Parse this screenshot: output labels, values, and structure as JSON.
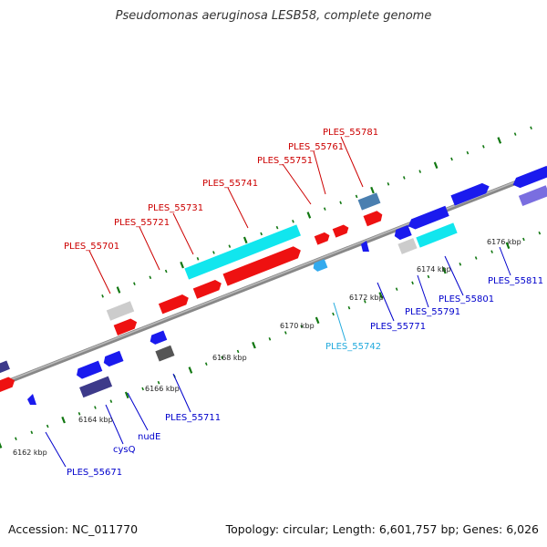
{
  "title": "Pseudomonas aeruginosa LESB58, complete genome",
  "footer": {
    "accession": "Accession: NC_011770",
    "summary": "Topology: circular; Length: 6,601,757 bp; Genes: 6,026"
  },
  "colors": {
    "backbone": "#8a8a8a",
    "plus_gene": "#ee1111",
    "minus_gene": "#1a1aee",
    "plus_label": "#cc0000",
    "minus_label": "#0000cc",
    "cyan_label": "#22aadd",
    "tick_dot": "#117711"
  },
  "ticks": [
    "6162 kbp",
    "6164 kbp",
    "6166 kbp",
    "6168 kbp",
    "6170 kbp",
    "6172 kbp",
    "6174 kbp",
    "6176 kbp"
  ],
  "labels": [
    {
      "text": "PLES_55781",
      "color": "#cc0000"
    },
    {
      "text": "PLES_55761",
      "color": "#cc0000"
    },
    {
      "text": "PLES_55751",
      "color": "#cc0000"
    },
    {
      "text": "PLES_55741",
      "color": "#cc0000"
    },
    {
      "text": "PLES_55731",
      "color": "#cc0000"
    },
    {
      "text": "PLES_55721",
      "color": "#cc0000"
    },
    {
      "text": "PLES_55701",
      "color": "#cc0000"
    },
    {
      "text": "PLES_55811",
      "color": "#0000cc"
    },
    {
      "text": "PLES_55801",
      "color": "#0000cc"
    },
    {
      "text": "PLES_55791",
      "color": "#0000cc"
    },
    {
      "text": "PLES_55771",
      "color": "#0000cc"
    },
    {
      "text": "PLES_55742",
      "color": "#22aadd"
    },
    {
      "text": "PLES_55711",
      "color": "#0000cc"
    },
    {
      "text": "nudE",
      "color": "#0000cc"
    },
    {
      "text": "cysQ",
      "color": "#0000cc"
    },
    {
      "text": "PLES_55671",
      "color": "#0000cc"
    }
  ]
}
